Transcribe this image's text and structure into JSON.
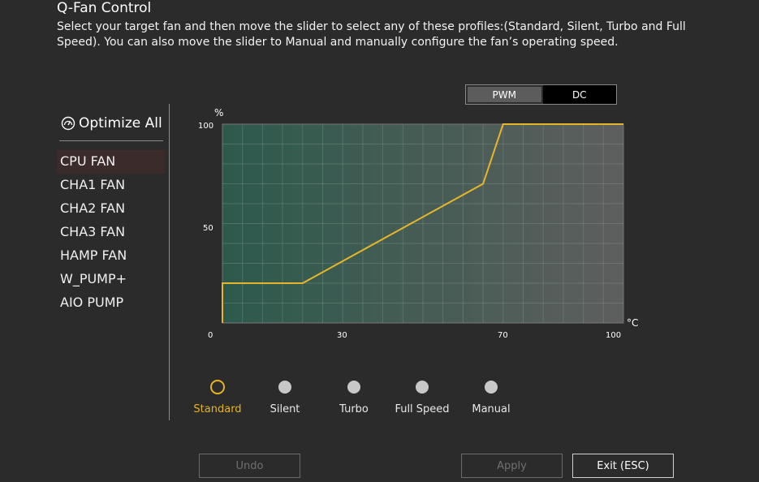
{
  "header": {
    "title": "Q-Fan Control",
    "description": "Select your target fan and then move the slider to select any of these profiles:(Standard, Silent, Turbo and Full Speed). You can also move the slider to Manual and manually configure the fan’s operating speed."
  },
  "mode_toggle": {
    "pwm_label": "PWM",
    "dc_label": "DC",
    "selected": "PWM"
  },
  "sidebar": {
    "optimize_label": "Optimize All",
    "fans": [
      {
        "label": "CPU FAN",
        "selected": true
      },
      {
        "label": "CHA1 FAN"
      },
      {
        "label": "CHA2 FAN"
      },
      {
        "label": "CHA3 FAN"
      },
      {
        "label": "HAMP FAN"
      },
      {
        "label": "W_PUMP+"
      },
      {
        "label": "AIO PUMP"
      }
    ]
  },
  "chart_data": {
    "type": "line",
    "ylabel": "%",
    "xlabel": "°C",
    "x_ticks": [
      "0",
      "30",
      "70",
      "100"
    ],
    "y_ticks": [
      "100",
      "50"
    ],
    "xlim": [
      0,
      100
    ],
    "ylim": [
      0,
      100
    ],
    "grid": true,
    "series": [
      {
        "points": [
          [
            0,
            0
          ],
          [
            0,
            20
          ],
          [
            20,
            20
          ],
          [
            65,
            70
          ],
          [
            70,
            100
          ],
          [
            100,
            100
          ]
        ]
      }
    ],
    "colors": {
      "line": "#e6b62a",
      "fill_left": "#2d5a4c",
      "fill_right": "#5e5e5e",
      "grid": "#8a9a94"
    }
  },
  "profile_slider": {
    "profiles": [
      "Standard",
      "Silent",
      "Turbo",
      "Full Speed",
      "Manual"
    ],
    "selected": "Standard",
    "active_color": "#e8b320"
  },
  "buttons": {
    "undo": "Undo",
    "apply": "Apply",
    "exit": "Exit (ESC)"
  }
}
